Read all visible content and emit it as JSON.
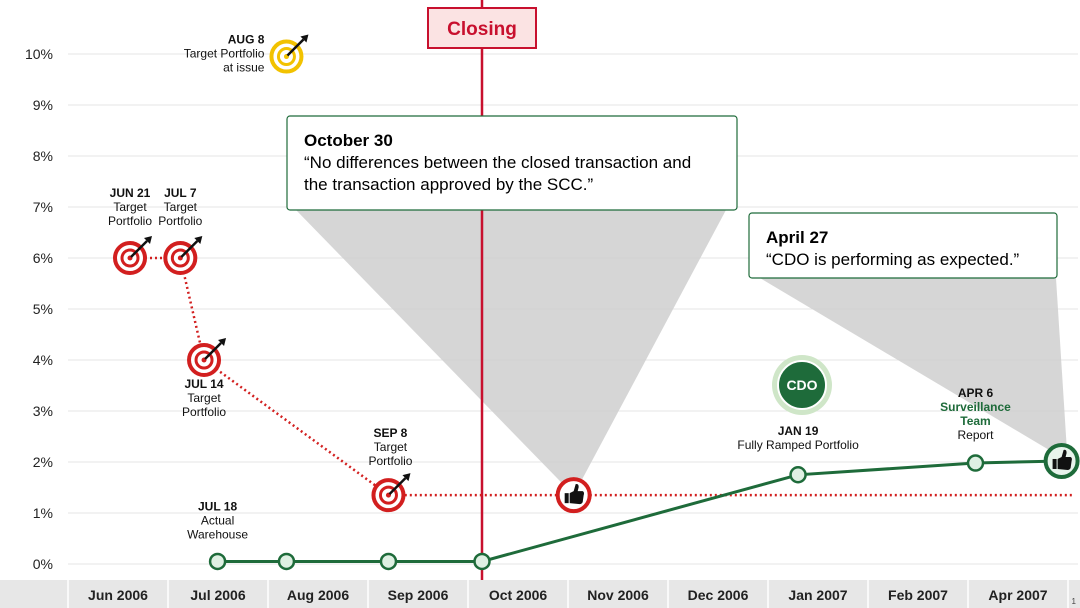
{
  "colors": {
    "red": "#d21f1f",
    "dark_red": "#c8102e",
    "green": "#1e6b3a",
    "gold": "#f2c200",
    "grid": "#e6e6e6",
    "callout_gray": "#cfcfcf",
    "axis_band": "#e7e7e7"
  },
  "chart_data": {
    "type": "line",
    "ylim": [
      0,
      10
    ],
    "y_ticks": [
      "0%",
      "1%",
      "2%",
      "3%",
      "4%",
      "5%",
      "6%",
      "7%",
      "8%",
      "9%",
      "10%"
    ],
    "x_categories": [
      "Jun 2006",
      "Jul 2006",
      "Aug 2006",
      "Sep 2006",
      "Oct 2006",
      "Nov 2006",
      "Dec 2006",
      "Jan 2007",
      "Feb 2007",
      "Apr 2007"
    ],
    "grid": true,
    "vertical_marker": {
      "label": "Closing",
      "at": "Oct 2006"
    },
    "series": [
      {
        "id": "target",
        "style": "dotted",
        "color": "#d21f1f",
        "points": [
          {
            "date": "2006-06-21",
            "y": 6.0
          },
          {
            "date": "2006-07-07",
            "y": 6.0
          },
          {
            "date": "2006-07-14",
            "y": 4.0
          },
          {
            "date": "2006-09-08",
            "y": 1.35
          },
          {
            "date": "2006-10-30",
            "y": 1.35
          },
          {
            "date": "2007-04-30",
            "y": 1.35
          }
        ]
      },
      {
        "id": "actual",
        "style": "solid",
        "color": "#1e6b3a",
        "points": [
          {
            "date": "2006-07-18",
            "y": 0.05
          },
          {
            "date": "2006-08-08",
            "y": 0.05
          },
          {
            "date": "2006-09-08",
            "y": 0.05
          },
          {
            "date": "2006-10-01",
            "y": 0.05
          },
          {
            "date": "2007-01-19",
            "y": 1.75
          },
          {
            "date": "2007-04-06",
            "y": 1.98
          },
          {
            "date": "2007-04-27",
            "y": 2.02
          }
        ]
      }
    ],
    "milestones": [
      {
        "id": "jun21",
        "kind": "target",
        "date": "2006-06-21",
        "y": 6.0,
        "label_lines": [
          "JUN 21",
          "Target",
          "Portfolio"
        ]
      },
      {
        "id": "jul7",
        "kind": "target",
        "date": "2006-07-07",
        "y": 6.0,
        "label_lines": [
          "JUL 7",
          "Target",
          "Portfolio"
        ]
      },
      {
        "id": "jul14",
        "kind": "target",
        "date": "2006-07-14",
        "y": 4.0,
        "label_lines": [
          "JUL 14",
          "Target",
          "Portfolio"
        ]
      },
      {
        "id": "sep8",
        "kind": "target",
        "date": "2006-09-08",
        "y": 1.35,
        "label_lines": [
          "SEP 8",
          "Target",
          "Portfolio"
        ]
      },
      {
        "id": "aug8",
        "kind": "target-gold",
        "date": "2006-08-08",
        "y": 9.95,
        "label_lines": [
          "AUG 8",
          "Target Portfolio",
          "at issue"
        ]
      },
      {
        "id": "oct30",
        "kind": "thumbs-red",
        "date": "2006-10-30",
        "y": 1.35,
        "label_lines": []
      },
      {
        "id": "jul18",
        "kind": "dot",
        "date": "2006-07-18",
        "y": 0.05,
        "label_lines": [
          "JUL 18",
          "Actual",
          "Warehouse"
        ]
      },
      {
        "id": "jan19",
        "kind": "dot",
        "date": "2007-01-19",
        "y": 1.75,
        "label_lines": [
          "JAN 19",
          "Fully Ramped Portfolio"
        ]
      },
      {
        "id": "apr6",
        "kind": "dot",
        "date": "2007-04-06",
        "y": 1.98,
        "label_lines": [
          "APR 6",
          "Surveillance",
          "Team",
          "Report"
        ]
      },
      {
        "id": "apr27",
        "kind": "thumbs-green",
        "date": "2007-04-27",
        "y": 2.02,
        "label_lines": []
      }
    ],
    "callouts": [
      {
        "id": "oct30",
        "title": "October 30",
        "lines": [
          "“No differences between the closed transaction and",
          "the transaction approved by the SCC.”"
        ]
      },
      {
        "id": "apr27",
        "title": "April 27",
        "lines": [
          "“CDO is performing as expected.”"
        ]
      }
    ],
    "badge": "CDO",
    "page_number": "1"
  }
}
